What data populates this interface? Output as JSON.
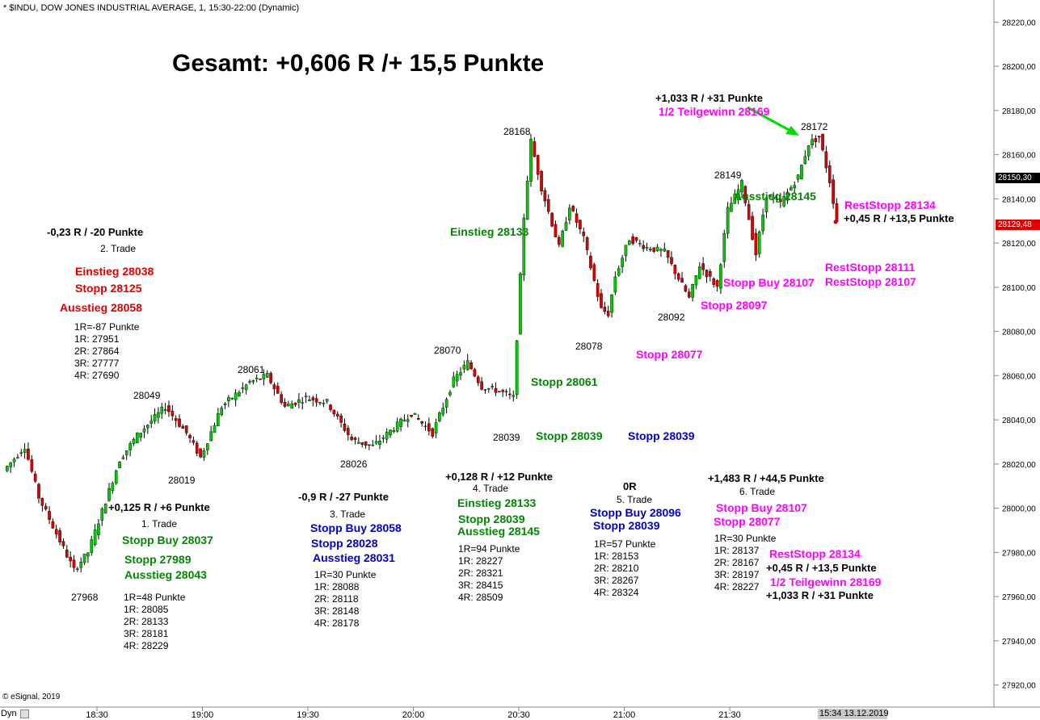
{
  "header": "* $INDU, DOW JONES INDUSTRIAL AVERAGE, 1, 15:30-22:00 (Dynamic)",
  "copyright": "© eSignal, 2019",
  "dyn_label": "Dyn",
  "date_box": "15:34 13.12.2019",
  "current_price": "28150,30",
  "last_price": "28129,48",
  "colors": {
    "up": "#00cc00",
    "down": "#dd0000",
    "grid": "#d0d0d0",
    "axis": "#888888",
    "green_arrow": "#00dd00",
    "price_box_blue": "#000000",
    "price_box_red": "#dd0000"
  },
  "chart_data": {
    "type": "candlestick",
    "title": "Gesamt: +0,606 R /+ 15,5 Punkte",
    "ylim": [
      27910,
      28230
    ],
    "y_ticks": [
      "27920,00",
      "27940,00",
      "27960,00",
      "27980,00",
      "28000,00",
      "28020,00",
      "28040,00",
      "28060,00",
      "28080,00",
      "28100,00",
      "28120,00",
      "28140,00",
      "28160,00",
      "28180,00",
      "28200,00",
      "28220,00"
    ],
    "x_ticks": [
      "18:30",
      "19:00",
      "19:30",
      "20:00",
      "20:30",
      "21:00",
      "21:30"
    ],
    "price_labels": [
      "27968",
      "28049",
      "28019",
      "28061",
      "28026",
      "28070",
      "28039",
      "28168",
      "28078",
      "28092",
      "28149",
      "28172"
    ],
    "anchors": [
      {
        "t": 0,
        "p": 28017
      },
      {
        "t": 6,
        "p": 28028
      },
      {
        "t": 10,
        "p": 28005
      },
      {
        "t": 20,
        "p": 27972
      },
      {
        "t": 24,
        "p": 27980
      },
      {
        "t": 33,
        "p": 28022
      },
      {
        "t": 38,
        "p": 28033
      },
      {
        "t": 46,
        "p": 28046
      },
      {
        "t": 52,
        "p": 28034
      },
      {
        "t": 56,
        "p": 28023
      },
      {
        "t": 62,
        "p": 28046
      },
      {
        "t": 70,
        "p": 28057
      },
      {
        "t": 75,
        "p": 28060
      },
      {
        "t": 80,
        "p": 28046
      },
      {
        "t": 86,
        "p": 28050
      },
      {
        "t": 92,
        "p": 28048
      },
      {
        "t": 99,
        "p": 28031
      },
      {
        "t": 105,
        "p": 28028
      },
      {
        "t": 110,
        "p": 28035
      },
      {
        "t": 116,
        "p": 28043
      },
      {
        "t": 122,
        "p": 28034
      },
      {
        "t": 128,
        "p": 28058
      },
      {
        "t": 132,
        "p": 28066
      },
      {
        "t": 136,
        "p": 28055
      },
      {
        "t": 141,
        "p": 28053
      },
      {
        "t": 145,
        "p": 28050
      },
      {
        "t": 148,
        "p": 28132
      },
      {
        "t": 150,
        "p": 28166
      },
      {
        "t": 153,
        "p": 28145
      },
      {
        "t": 158,
        "p": 28118
      },
      {
        "t": 161,
        "p": 28137
      },
      {
        "t": 165,
        "p": 28122
      },
      {
        "t": 170,
        "p": 28090
      },
      {
        "t": 172,
        "p": 28088
      },
      {
        "t": 174,
        "p": 28105
      },
      {
        "t": 178,
        "p": 28122
      },
      {
        "t": 183,
        "p": 28118
      },
      {
        "t": 188,
        "p": 28116
      },
      {
        "t": 192,
        "p": 28104
      },
      {
        "t": 195,
        "p": 28095
      },
      {
        "t": 198,
        "p": 28110
      },
      {
        "t": 203,
        "p": 28100
      },
      {
        "t": 206,
        "p": 28135
      },
      {
        "t": 210,
        "p": 28147
      },
      {
        "t": 214,
        "p": 28115
      },
      {
        "t": 217,
        "p": 28142
      },
      {
        "t": 221,
        "p": 28138
      },
      {
        "t": 226,
        "p": 28150
      },
      {
        "t": 229,
        "p": 28165
      },
      {
        "t": 232,
        "p": 28168
      },
      {
        "t": 235,
        "p": 28148
      },
      {
        "t": 237,
        "p": 28130
      }
    ]
  },
  "annotations": {
    "t1_result": "+0,125 R / +6 Punkte",
    "t1_name": "1. Trade",
    "t1_buy": "Stopp Buy 28037",
    "t1_stop": "Stopp 27989",
    "t1_exit": "Ausstieg 28043",
    "t1_r": [
      "1R=48 Punkte",
      "1R: 28085",
      "2R: 28133",
      "3R: 28181",
      "4R: 28229"
    ],
    "t2_result": "-0,23 R / -20 Punkte",
    "t2_name": "2. Trade",
    "t2_entry": "Einstieg 28038",
    "t2_stop": "Stopp 28125",
    "t2_exit": "Ausstieg 28058",
    "t2_r": [
      "1R=-87 Punkte",
      "1R: 27951",
      "2R: 27864",
      "3R: 27777",
      "4R: 27690"
    ],
    "t3_result": "-0,9 R / -27 Punkte",
    "t3_name": "3. Trade",
    "t3_buy": "Stopp Buy 28058",
    "t3_stop": "Stopp 28028",
    "t3_exit": "Ausstieg 28031",
    "t3_r": [
      "1R=30 Punkte",
      "1R: 28088",
      "2R: 28118",
      "3R: 28148",
      "4R: 28178"
    ],
    "t4_result": "+0,128 R / +12 Punkte",
    "t4_name": "4. Trade",
    "t4_entry": "Einstieg 28133",
    "t4_stop": "Stopp 28039",
    "t4_exit": "Ausstieg 28145",
    "t4_r": [
      "1R=94 Punkte",
      "1R: 28227",
      "2R: 28321",
      "3R: 28415",
      "4R: 28509"
    ],
    "t5_result": "0R",
    "t5_name": "5. Trade",
    "t5_buy": "Stopp Buy 28096",
    "t5_stop": "Stopp 28039",
    "t5_r": [
      "1R=57 Punkte",
      "1R: 28153",
      "2R: 28210",
      "3R: 28267",
      "4R: 28324"
    ],
    "t6_result": "+1,483 R / +44,5 Punkte",
    "t6_name": "6. Trade",
    "t6_buy": "Stopp Buy 28107",
    "t6_stop": "Stopp 28077",
    "t6_r": [
      "1R=30 Punkte",
      "1R: 28137",
      "2R: 28167",
      "3R: 28197",
      "4R: 28227"
    ],
    "t6_rest": "RestStopp 28134",
    "t6_rest_r": "+0,45 R / +13,5 Punkte",
    "t6_tg": "1/2 Teilgewinn 28169",
    "t6_tg_r": "+1,033 R / +31 Punkte",
    "c_einstieg": "Einstieg 28133",
    "c_stopp61": "Stopp 28061",
    "c_stopp39g": "Stopp 28039",
    "c_stopp39b": "Stopp 28039",
    "c_stopp77": "Stopp 28077",
    "c_stopp97": "Stopp 28097",
    "c_stoppbuy": "Stopp Buy 28107",
    "c_ausstieg": "Ausstieg 28145",
    "c_tg_r": "+1,033 R / +31 Punkte",
    "c_tg": "1/2 Teilgewinn 28169",
    "c_rest1": "RestStopp 28134",
    "c_rest1_r": "+0,45 R / +13,5 Punkte",
    "c_rest2": "RestStopp 28111",
    "c_rest3": "RestStopp 28107"
  }
}
